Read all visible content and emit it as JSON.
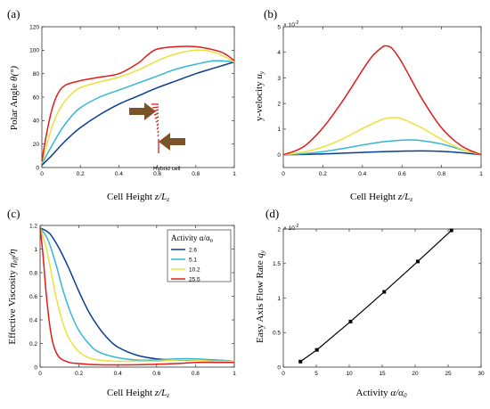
{
  "chart_data": [
    {
      "panel": "(a)",
      "type": "line",
      "xlabel_main": "Cell Height ",
      "xlabel_var": "z/L",
      "xlabel_sub": "z",
      "ylabel_main": "Polar Angle ",
      "ylabel_var": "θ(°)",
      "xlim": [
        0,
        1
      ],
      "ylim": [
        0,
        120
      ],
      "xticks": [
        0,
        0.2,
        0.4,
        0.6,
        0.8,
        1
      ],
      "xtick_labels": [
        "0",
        "0.2",
        "0.4",
        "0.6",
        "0.8",
        "1"
      ],
      "yticks": [
        0,
        20,
        40,
        60,
        80,
        100,
        120
      ],
      "ytick_labels": [
        "0",
        "20",
        "40",
        "60",
        "80",
        "100",
        "120"
      ],
      "annotation": "Hybrid cell",
      "series": [
        {
          "color": "#0b3d91",
          "x": [
            0,
            0.05,
            0.1,
            0.15,
            0.2,
            0.3,
            0.4,
            0.5,
            0.6,
            0.7,
            0.8,
            0.9,
            1.0
          ],
          "y": [
            2,
            10,
            19,
            27,
            34,
            45,
            54,
            61,
            68,
            74,
            80,
            85,
            90
          ]
        },
        {
          "color": "#35b6d6",
          "x": [
            0,
            0.05,
            0.1,
            0.15,
            0.2,
            0.3,
            0.4,
            0.5,
            0.6,
            0.7,
            0.8,
            0.9,
            1.0
          ],
          "y": [
            3,
            18,
            32,
            43,
            51,
            60,
            66,
            72,
            78,
            84,
            88,
            91,
            90
          ]
        },
        {
          "color": "#e9e23a",
          "x": [
            0,
            0.03,
            0.06,
            0.1,
            0.15,
            0.2,
            0.3,
            0.4,
            0.5,
            0.6,
            0.7,
            0.8,
            0.9,
            1.0
          ],
          "y": [
            4,
            22,
            38,
            52,
            62,
            68,
            73,
            77,
            83,
            91,
            97,
            100,
            98,
            90
          ]
        },
        {
          "color": "#e01c1c",
          "x": [
            0,
            0.02,
            0.05,
            0.08,
            0.12,
            0.2,
            0.3,
            0.4,
            0.5,
            0.55,
            0.6,
            0.7,
            0.8,
            0.9,
            0.95,
            1.0
          ],
          "y": [
            5,
            25,
            48,
            62,
            70,
            74,
            77,
            80,
            89,
            96,
            101,
            103,
            103,
            100,
            97,
            91
          ]
        }
      ]
    },
    {
      "panel": "(b)",
      "type": "line",
      "xlabel_main": "Cell Height ",
      "xlabel_var": "z/L",
      "xlabel_sub": "z",
      "ylabel_main": "y-velocity ",
      "ylabel_var": "u",
      "ylabel_sub": "y",
      "exponent_base": "× 10",
      "exponent": "-2",
      "xlim": [
        0,
        1
      ],
      "ylim": [
        -0.5,
        5
      ],
      "xticks": [
        0,
        0.2,
        0.4,
        0.6,
        0.8,
        1
      ],
      "xtick_labels": [
        "0",
        "0.2",
        "0.4",
        "0.6",
        "0.8",
        "1"
      ],
      "yticks": [
        0,
        1,
        2,
        3,
        4,
        5
      ],
      "ytick_labels": [
        "0",
        "1",
        "2",
        "3",
        "4",
        "5"
      ],
      "series": [
        {
          "color": "#0b3d91",
          "x": [
            0,
            0.1,
            0.2,
            0.3,
            0.4,
            0.5,
            0.6,
            0.7,
            0.8,
            0.9,
            1.0
          ],
          "y": [
            0,
            0.01,
            0.03,
            0.06,
            0.09,
            0.12,
            0.14,
            0.15,
            0.13,
            0.08,
            0
          ]
        },
        {
          "color": "#35b6d6",
          "x": [
            0,
            0.1,
            0.2,
            0.3,
            0.4,
            0.5,
            0.6,
            0.65,
            0.7,
            0.8,
            0.9,
            1.0
          ],
          "y": [
            0,
            0.04,
            0.12,
            0.24,
            0.38,
            0.5,
            0.57,
            0.58,
            0.55,
            0.42,
            0.2,
            0
          ]
        },
        {
          "color": "#e9e23a",
          "x": [
            0,
            0.1,
            0.2,
            0.3,
            0.4,
            0.5,
            0.55,
            0.6,
            0.7,
            0.8,
            0.9,
            1.0
          ],
          "y": [
            0,
            0.1,
            0.3,
            0.62,
            1.02,
            1.38,
            1.45,
            1.4,
            1.05,
            0.6,
            0.22,
            0
          ]
        },
        {
          "color": "#e01c1c",
          "x": [
            0,
            0.1,
            0.2,
            0.3,
            0.4,
            0.45,
            0.5,
            0.52,
            0.55,
            0.6,
            0.7,
            0.8,
            0.9,
            1.0
          ],
          "y": [
            0,
            0.3,
            1.05,
            2.1,
            3.3,
            3.85,
            4.2,
            4.25,
            4.15,
            3.6,
            2.2,
            1.05,
            0.35,
            0
          ]
        }
      ]
    },
    {
      "panel": "(c)",
      "type": "line",
      "xlabel_main": "Cell Height ",
      "xlabel_var": "z/L",
      "xlabel_sub": "z",
      "ylabel_main": "Effective Viscosity ",
      "ylabel_var": "η",
      "ylabel_sub": "eff",
      "ylabel_tail": "/η",
      "xlim": [
        0,
        1
      ],
      "ylim": [
        0,
        1.2
      ],
      "xticks": [
        0,
        0.2,
        0.4,
        0.6,
        0.8,
        1
      ],
      "xtick_labels": [
        "0",
        "0.2",
        "0.4",
        "0.6",
        "0.8",
        "1"
      ],
      "yticks": [
        0,
        0.2,
        0.4,
        0.6,
        0.8,
        1,
        1.2
      ],
      "ytick_labels": [
        "0",
        "0.2",
        "0.4",
        "0.6",
        "0.8",
        "1",
        "1.2"
      ],
      "legend_title": "Activity α/α",
      "legend_title_sub": "0",
      "series": [
        {
          "name": "2.6",
          "color": "#0b3d91",
          "x": [
            0,
            0.05,
            0.1,
            0.15,
            0.2,
            0.25,
            0.3,
            0.35,
            0.4,
            0.5,
            0.6,
            0.7,
            0.8,
            0.9,
            1.0
          ],
          "y": [
            1.18,
            1.13,
            1.0,
            0.83,
            0.64,
            0.47,
            0.34,
            0.24,
            0.17,
            0.1,
            0.07,
            0.06,
            0.06,
            0.06,
            0.05
          ]
        },
        {
          "name": "5.1",
          "color": "#35b6d6",
          "x": [
            0,
            0.04,
            0.08,
            0.12,
            0.16,
            0.2,
            0.25,
            0.3,
            0.4,
            0.5,
            0.6,
            0.7,
            0.8,
            0.9,
            1.0
          ],
          "y": [
            1.18,
            1.08,
            0.88,
            0.64,
            0.45,
            0.31,
            0.2,
            0.13,
            0.08,
            0.06,
            0.06,
            0.07,
            0.07,
            0.06,
            0.05
          ]
        },
        {
          "name": "10.2",
          "color": "#e9e23a",
          "x": [
            0,
            0.03,
            0.06,
            0.09,
            0.12,
            0.15,
            0.2,
            0.25,
            0.3,
            0.4,
            0.5,
            0.6,
            0.7,
            0.8,
            0.9,
            1.0
          ],
          "y": [
            1.18,
            1.02,
            0.78,
            0.54,
            0.36,
            0.24,
            0.13,
            0.08,
            0.06,
            0.05,
            0.05,
            0.05,
            0.06,
            0.06,
            0.05,
            0.05
          ]
        },
        {
          "name": "25.5",
          "color": "#e01c1c",
          "x": [
            0,
            0.015,
            0.03,
            0.05,
            0.07,
            0.1,
            0.15,
            0.2,
            0.3,
            0.5,
            0.7,
            0.8,
            0.9,
            1.0
          ],
          "y": [
            1.18,
            0.95,
            0.65,
            0.35,
            0.18,
            0.08,
            0.04,
            0.03,
            0.02,
            0.02,
            0.03,
            0.04,
            0.04,
            0.04
          ]
        }
      ]
    },
    {
      "panel": "(d)",
      "type": "line",
      "xlabel_main": "Activity ",
      "xlabel_var": "α/α",
      "xlabel_sub": "0",
      "ylabel_main": "Easy Axis Flow Rate ",
      "ylabel_var": "q",
      "ylabel_sub": "y",
      "exponent_base": "× 10",
      "exponent": "-2",
      "xlim": [
        0,
        30
      ],
      "ylim": [
        0,
        2
      ],
      "xticks": [
        0,
        5,
        10,
        15,
        20,
        25,
        30
      ],
      "xtick_labels": [
        "0",
        "5",
        "10",
        "15",
        "20",
        "25",
        "30"
      ],
      "yticks": [
        0,
        0.5,
        1,
        1.5,
        2
      ],
      "ytick_labels": [
        "0",
        "0.5",
        "1",
        "1.5",
        "2"
      ],
      "series": [
        {
          "color": "#000000",
          "x": [
            2.6,
            5.1,
            10.2,
            15.3,
            20.4,
            25.5
          ],
          "y": [
            0.08,
            0.25,
            0.66,
            1.09,
            1.53,
            1.98
          ]
        }
      ]
    }
  ]
}
